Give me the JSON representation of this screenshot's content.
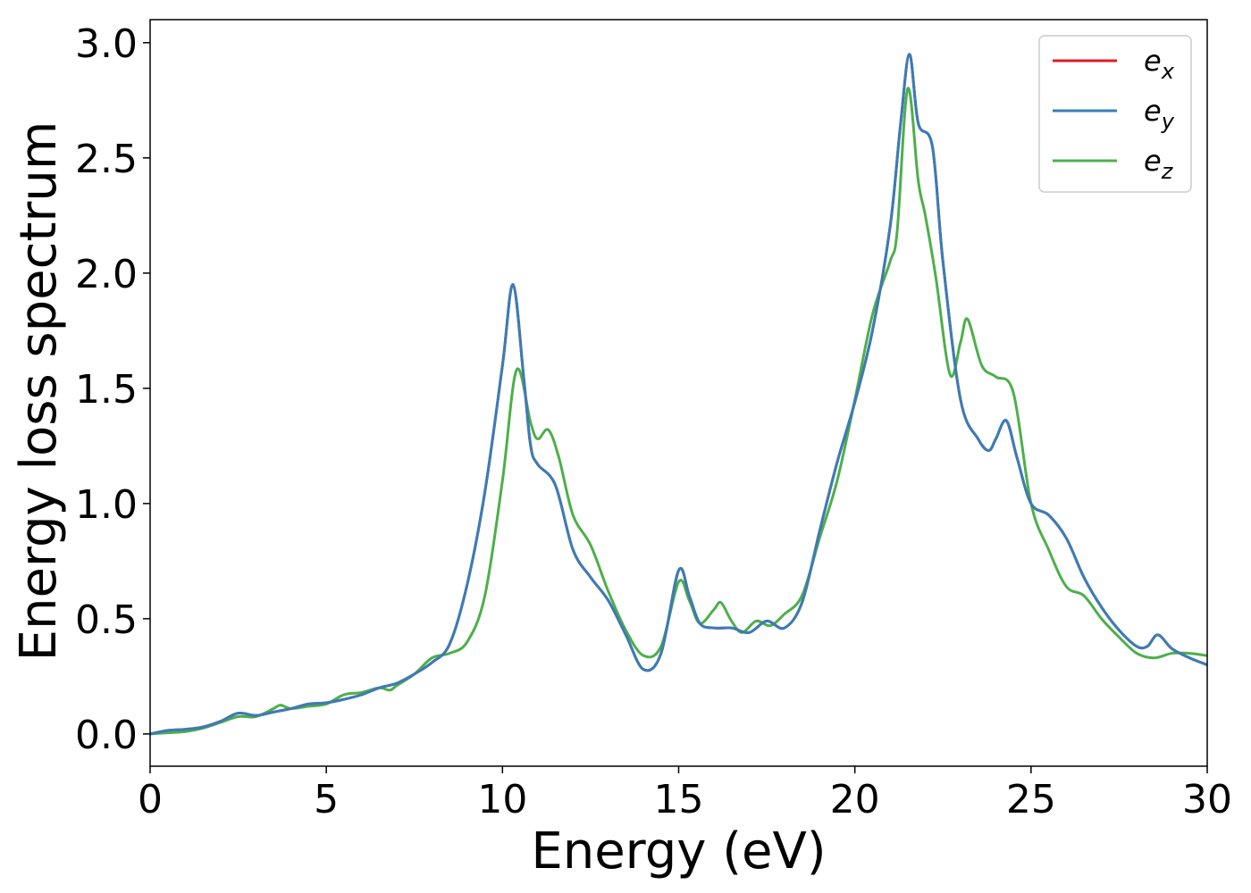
{
  "chart_data": {
    "type": "line",
    "xlabel": "Energy (eV)",
    "ylabel": "Energy loss spectrum",
    "xlim": [
      0,
      30
    ],
    "ylim": [
      -0.14,
      3.1
    ],
    "xticks": [
      0,
      5,
      10,
      15,
      20,
      25,
      30
    ],
    "xtick_labels": [
      "0",
      "5",
      "10",
      "15",
      "20",
      "25",
      "30"
    ],
    "yticks": [
      0.0,
      0.5,
      1.0,
      1.5,
      2.0,
      2.5,
      3.0
    ],
    "ytick_labels": [
      "0.0",
      "0.5",
      "1.0",
      "1.5",
      "2.0",
      "2.5",
      "3.0"
    ],
    "grid": false,
    "legend_position": "top-right",
    "series": [
      {
        "name": "e",
        "subscript": "x",
        "color": "#e41a1c",
        "x": [
          0,
          0.5,
          1,
          1.5,
          2,
          2.5,
          3,
          3.5,
          4,
          4.5,
          5,
          5.5,
          6,
          6.5,
          7,
          7.5,
          8,
          8.5,
          9,
          9.5,
          10,
          10.3,
          10.6,
          10.8,
          11,
          11.5,
          12,
          12.5,
          13,
          13.5,
          14,
          14.5,
          15,
          15.3,
          15.6,
          16,
          16.5,
          17,
          17.5,
          18,
          18.5,
          19,
          19.5,
          20,
          20.5,
          21,
          21.3,
          21.55,
          21.8,
          22.2,
          22.5,
          23,
          23.5,
          23.8,
          24,
          24.3,
          24.6,
          25,
          25.5,
          26,
          26.5,
          27,
          27.5,
          28,
          28.3,
          28.6,
          29,
          29.5,
          30
        ],
        "y": [
          0.0,
          0.015,
          0.02,
          0.03,
          0.055,
          0.09,
          0.08,
          0.095,
          0.11,
          0.13,
          0.135,
          0.15,
          0.17,
          0.2,
          0.22,
          0.26,
          0.31,
          0.39,
          0.65,
          1.05,
          1.6,
          1.95,
          1.55,
          1.25,
          1.17,
          1.08,
          0.8,
          0.68,
          0.58,
          0.43,
          0.28,
          0.35,
          0.71,
          0.6,
          0.48,
          0.46,
          0.46,
          0.44,
          0.49,
          0.46,
          0.57,
          0.88,
          1.18,
          1.44,
          1.75,
          2.2,
          2.65,
          2.95,
          2.65,
          2.55,
          2.05,
          1.45,
          1.28,
          1.23,
          1.28,
          1.36,
          1.2,
          1.0,
          0.95,
          0.85,
          0.68,
          0.55,
          0.45,
          0.38,
          0.38,
          0.43,
          0.37,
          0.33,
          0.3
        ]
      },
      {
        "name": "e",
        "subscript": "y",
        "color": "#377eb8",
        "x": [
          0,
          0.5,
          1,
          1.5,
          2,
          2.5,
          3,
          3.5,
          4,
          4.5,
          5,
          5.5,
          6,
          6.5,
          7,
          7.5,
          8,
          8.5,
          9,
          9.5,
          10,
          10.3,
          10.6,
          10.8,
          11,
          11.5,
          12,
          12.5,
          13,
          13.5,
          14,
          14.5,
          15,
          15.3,
          15.6,
          16,
          16.5,
          17,
          17.5,
          18,
          18.5,
          19,
          19.5,
          20,
          20.5,
          21,
          21.3,
          21.55,
          21.8,
          22.2,
          22.5,
          23,
          23.5,
          23.8,
          24,
          24.3,
          24.6,
          25,
          25.5,
          26,
          26.5,
          27,
          27.5,
          28,
          28.3,
          28.6,
          29,
          29.5,
          30
        ],
        "y": [
          0.0,
          0.015,
          0.02,
          0.03,
          0.055,
          0.09,
          0.08,
          0.095,
          0.11,
          0.13,
          0.135,
          0.15,
          0.17,
          0.2,
          0.22,
          0.26,
          0.31,
          0.39,
          0.65,
          1.05,
          1.6,
          1.95,
          1.55,
          1.25,
          1.17,
          1.08,
          0.8,
          0.68,
          0.58,
          0.43,
          0.28,
          0.35,
          0.71,
          0.6,
          0.48,
          0.46,
          0.46,
          0.44,
          0.49,
          0.46,
          0.57,
          0.88,
          1.18,
          1.44,
          1.75,
          2.2,
          2.65,
          2.95,
          2.65,
          2.55,
          2.05,
          1.45,
          1.28,
          1.23,
          1.28,
          1.36,
          1.2,
          1.0,
          0.95,
          0.85,
          0.68,
          0.55,
          0.45,
          0.38,
          0.38,
          0.43,
          0.37,
          0.33,
          0.3
        ]
      },
      {
        "name": "e",
        "subscript": "z",
        "color": "#4daf4a",
        "x": [
          0,
          0.5,
          1,
          1.5,
          2,
          2.5,
          3,
          3.5,
          3.7,
          4,
          4.5,
          5,
          5.5,
          6,
          6.5,
          6.8,
          7,
          7.5,
          8,
          8.5,
          9,
          9.5,
          10,
          10.4,
          10.8,
          11,
          11.3,
          11.6,
          12,
          12.5,
          13,
          13.5,
          14,
          14.5,
          15,
          15.3,
          15.6,
          16,
          16.2,
          16.5,
          16.8,
          17.2,
          17.6,
          18,
          18.5,
          19,
          19.5,
          20,
          20.5,
          21,
          21.2,
          21.5,
          21.8,
          22,
          22.3,
          22.7,
          23,
          23.2,
          23.6,
          24,
          24.5,
          25,
          25.5,
          26,
          26.5,
          27,
          27.5,
          28,
          28.5,
          29,
          29.5,
          30
        ],
        "y": [
          0.0,
          0.005,
          0.01,
          0.025,
          0.05,
          0.075,
          0.075,
          0.11,
          0.125,
          0.11,
          0.12,
          0.13,
          0.17,
          0.18,
          0.2,
          0.19,
          0.21,
          0.26,
          0.33,
          0.35,
          0.4,
          0.6,
          1.1,
          1.58,
          1.35,
          1.28,
          1.32,
          1.2,
          0.95,
          0.82,
          0.62,
          0.45,
          0.34,
          0.38,
          0.66,
          0.58,
          0.48,
          0.54,
          0.57,
          0.49,
          0.44,
          0.49,
          0.47,
          0.52,
          0.6,
          0.85,
          1.1,
          1.45,
          1.82,
          2.05,
          2.18,
          2.8,
          2.4,
          2.25,
          1.98,
          1.56,
          1.7,
          1.8,
          1.6,
          1.55,
          1.48,
          1.0,
          0.8,
          0.64,
          0.6,
          0.5,
          0.42,
          0.35,
          0.33,
          0.35,
          0.35,
          0.34
        ]
      }
    ]
  }
}
